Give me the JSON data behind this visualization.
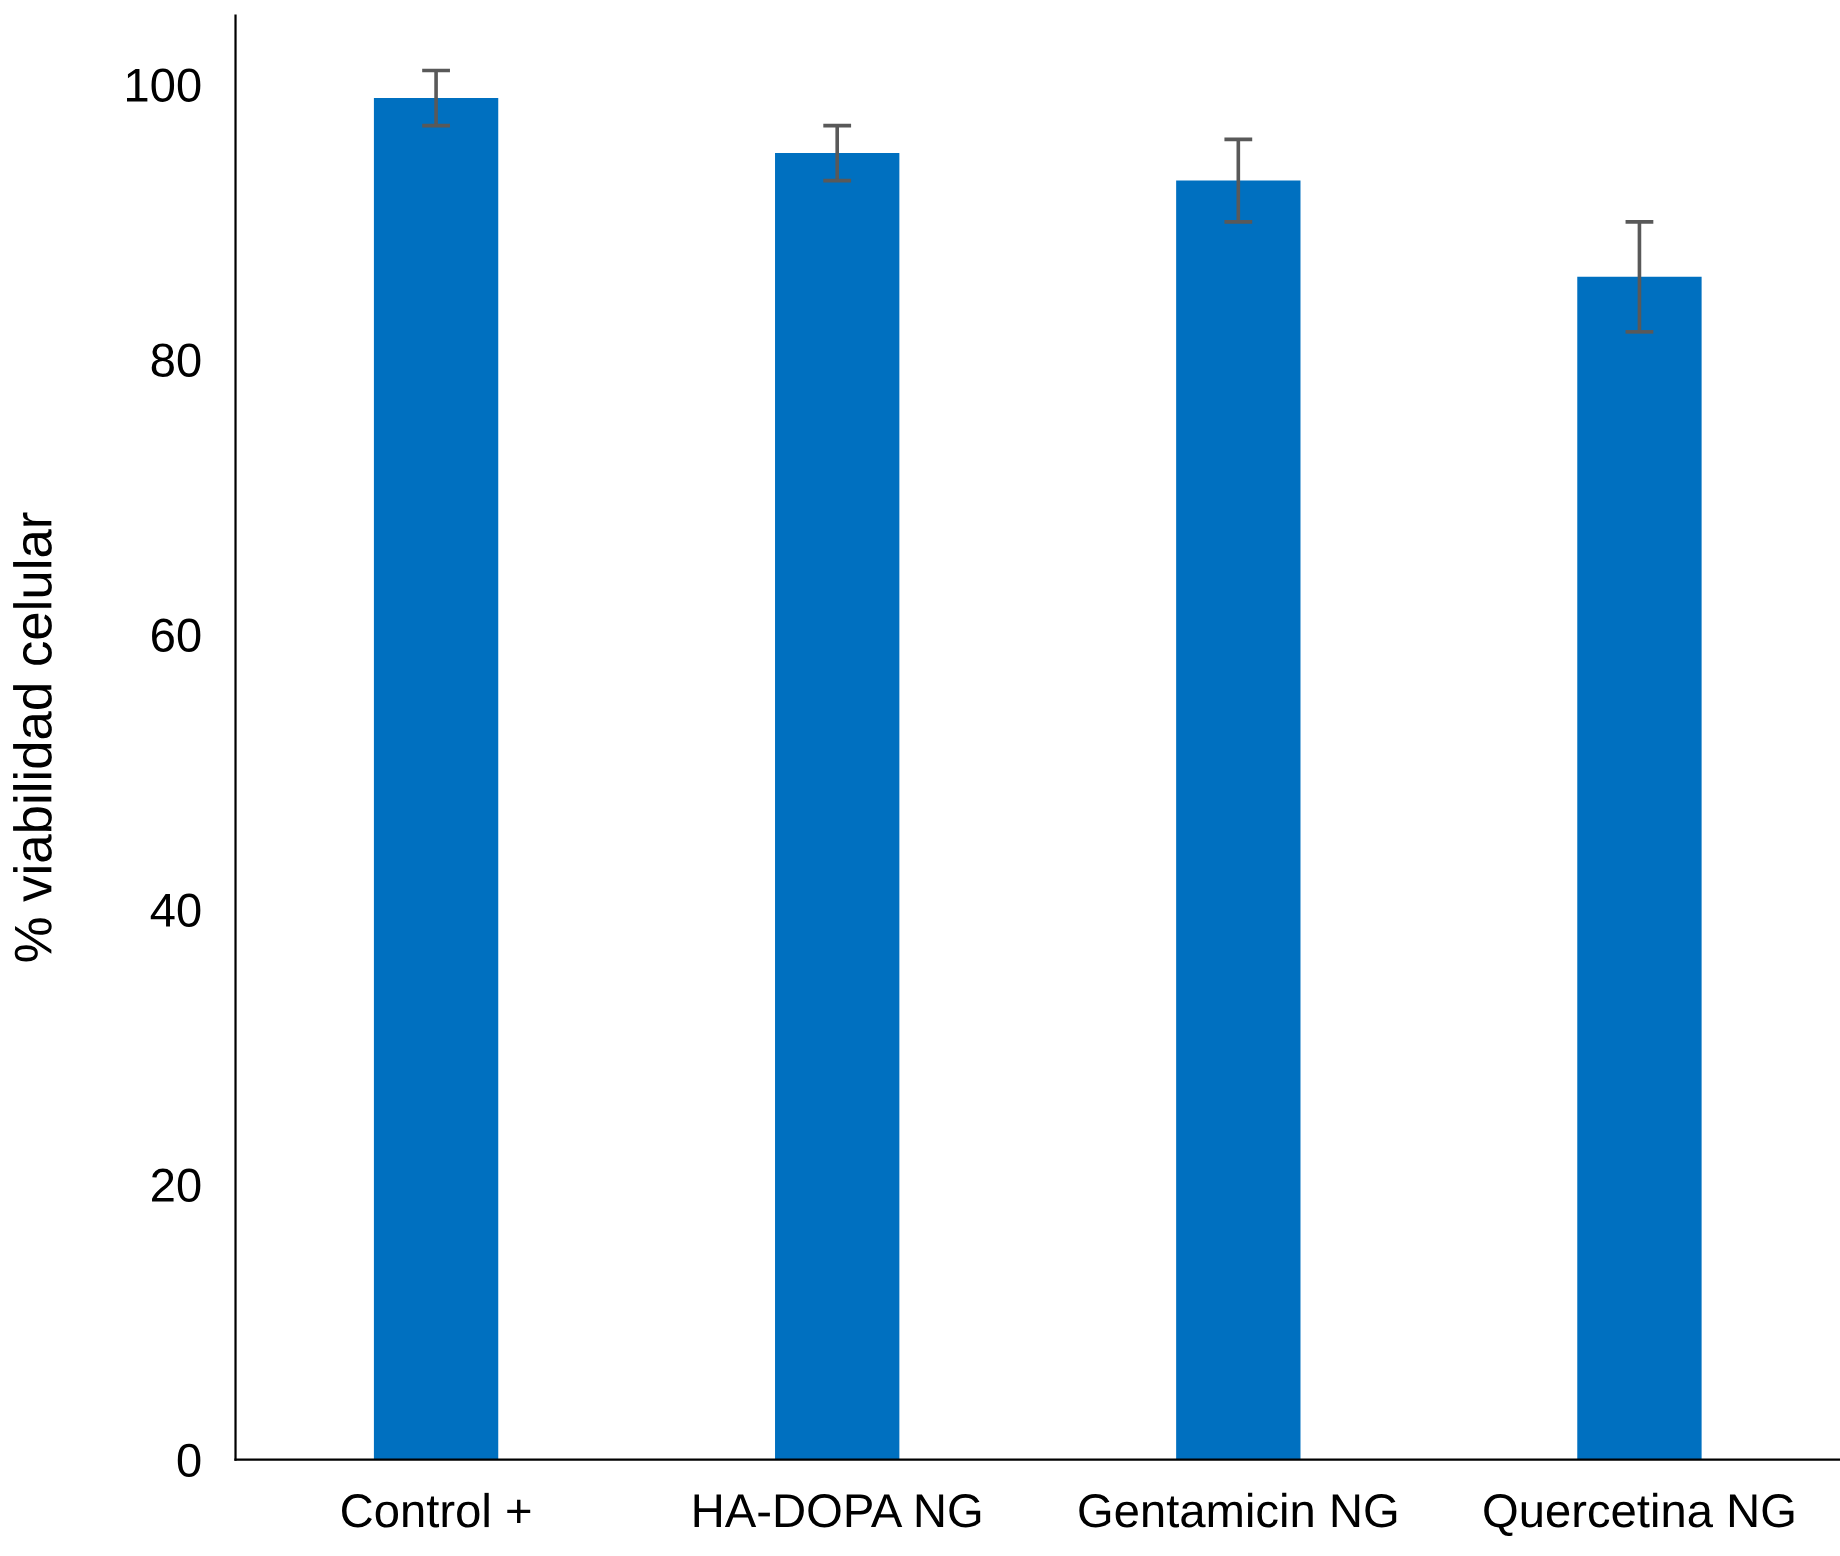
{
  "chart_data": {
    "type": "bar",
    "ylabel": "% viabilidad celular",
    "categories": [
      "Control +",
      "HA-DOPA NG",
      "Gentamicin NG",
      "Quercetina NG"
    ],
    "values": [
      99,
      95,
      93,
      86
    ],
    "errors": [
      2,
      2,
      3,
      4
    ],
    "color": "#0070c0",
    "ylim": [
      0,
      105
    ],
    "yticks": [
      0,
      20,
      40,
      60,
      80,
      100
    ],
    "grid": false,
    "legend": false
  }
}
